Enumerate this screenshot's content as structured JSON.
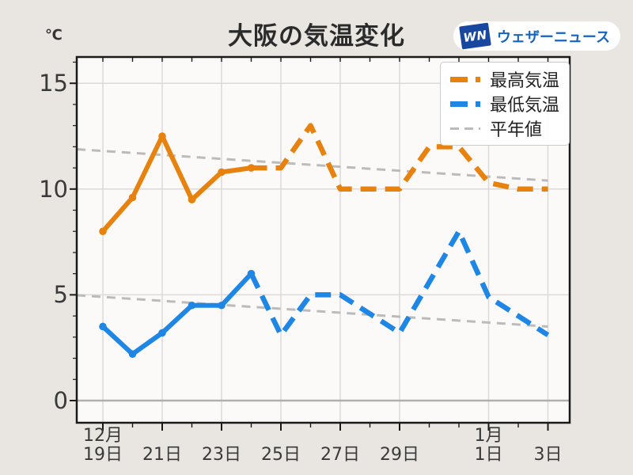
{
  "header": {
    "title": "大阪の気温変化",
    "unit_label": "℃",
    "logo": {
      "badge_text": "WN",
      "badge_color": "#17479E",
      "brand_text": "ウェザーニュース",
      "brand_color": "#1565C0"
    }
  },
  "chart_data": {
    "type": "line",
    "title": "大阪の気温変化",
    "ylabel": "℃",
    "ylim": [
      -1.1,
      16.3
    ],
    "grid": true,
    "legend_position": "upper right",
    "x_dates": [
      "12月19日",
      "12月20日",
      "12月21日",
      "12月22日",
      "12月23日",
      "12月24日",
      "12月25日",
      "12月26日",
      "12月27日",
      "12月28日",
      "12月29日",
      "12月30日",
      "12月31日",
      "1月1日",
      "1月2日",
      "1月3日"
    ],
    "x_tick_labels": [
      {
        "index": 0,
        "text": "12月\n19日"
      },
      {
        "index": 2,
        "text": "21日"
      },
      {
        "index": 4,
        "text": "23日"
      },
      {
        "index": 6,
        "text": "25日"
      },
      {
        "index": 8,
        "text": "27日"
      },
      {
        "index": 10,
        "text": "29日"
      },
      {
        "index": 13,
        "text": "1月\n1日"
      },
      {
        "index": 15,
        "text": "3日"
      }
    ],
    "y_ticks": [
      0,
      5,
      10,
      15
    ],
    "y_tick_labels": [
      "0",
      "5",
      "10",
      "15"
    ],
    "series": [
      {
        "name": "最高気温",
        "color": "#E8820E",
        "style": "solid observed, dashed forecast",
        "solid_until_index": 5,
        "values": [
          8.0,
          9.6,
          12.5,
          9.5,
          10.8,
          11.0,
          11.0,
          13.0,
          10.0,
          10.0,
          10.0,
          12.0,
          12.0,
          10.3,
          10.0,
          10.0
        ]
      },
      {
        "name": "最低気温",
        "color": "#1E87E6",
        "style": "solid observed, dashed forecast",
        "solid_until_index": 5,
        "values": [
          3.5,
          2.2,
          3.2,
          4.5,
          4.5,
          6.0,
          3.1,
          5.0,
          5.0,
          4.1,
          3.2,
          5.6,
          8.0,
          4.9,
          4.0,
          3.1
        ]
      },
      {
        "name": "平年値(最高)",
        "color": "#BBBBBB",
        "style": "dashed straight line",
        "endpoints": [
          11.8,
          10.4
        ]
      },
      {
        "name": "平年値(最低)",
        "color": "#BBBBBB",
        "style": "dashed straight line",
        "endpoints": [
          4.9,
          3.5
        ]
      }
    ],
    "legend": [
      {
        "label": "最高気温",
        "color": "#E8820E",
        "line": "thick-dash"
      },
      {
        "label": "最低気温",
        "color": "#1E87E6",
        "line": "thick-dash"
      },
      {
        "label": "平年値",
        "color": "#BBBBBB",
        "line": "thin-dash"
      }
    ]
  }
}
